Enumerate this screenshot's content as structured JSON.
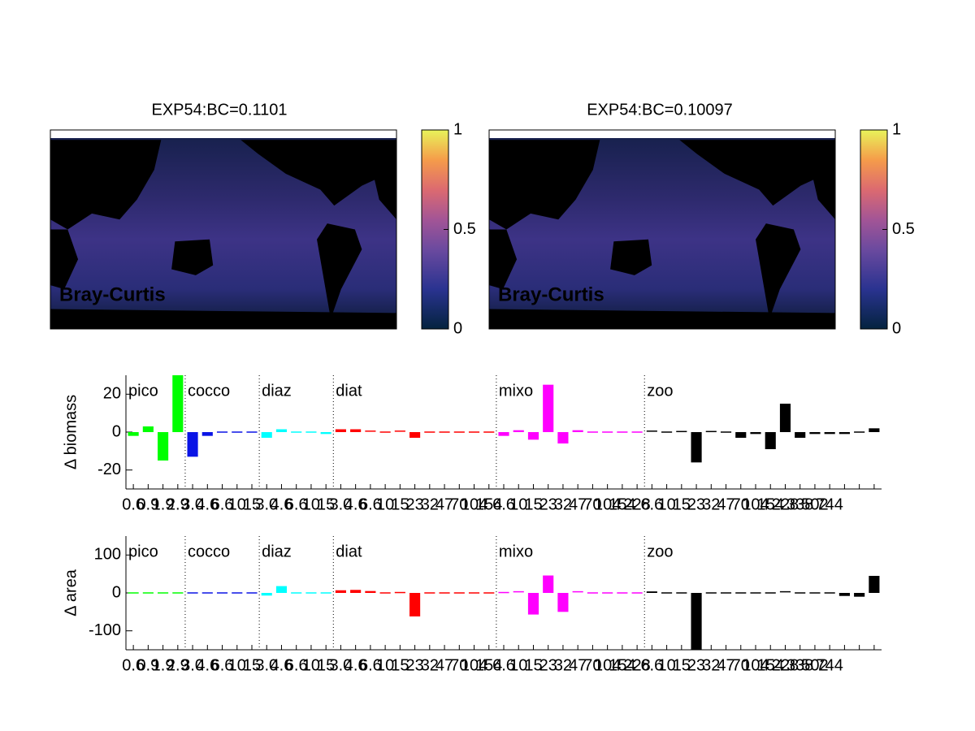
{
  "chart_data": [
    {
      "type": "map",
      "title": "EXP54:BC=0.1101",
      "label": "Bray-Curtis",
      "ylim": [
        0,
        1
      ],
      "yticks": [
        0,
        0.5,
        1
      ]
    },
    {
      "type": "map",
      "title": "EXP54:BC=0.10097",
      "label": "Bray-Curtis",
      "ylim": [
        0,
        1
      ],
      "yticks": [
        0,
        0.5,
        1
      ]
    },
    {
      "type": "bar",
      "ylabel": "Δ biomass",
      "ylim": [
        -30,
        30
      ],
      "yticks": [
        -20,
        0,
        20
      ],
      "series": [
        {
          "name": "pico",
          "color": "#00ff00",
          "categories": [
            "0.6",
            "0.9",
            "1.9",
            "2.9"
          ],
          "values": [
            -2,
            3,
            -15,
            30
          ]
        },
        {
          "name": "cocco",
          "color": "#0a14e6",
          "categories": [
            "3.0",
            "4.6",
            "6.6",
            "10",
            "15"
          ],
          "values": [
            -13,
            -2,
            -0.5,
            -0.5,
            0
          ]
        },
        {
          "name": "diaz",
          "color": "#00ffff",
          "categories": [
            "3.0",
            "4.6",
            "6.6",
            "10",
            "15"
          ],
          "values": [
            -3,
            1.5,
            0,
            0,
            -1
          ]
        },
        {
          "name": "diat",
          "color": "#ff0000",
          "categories": [
            "3.0",
            "4.6",
            "6.6",
            "10",
            "15",
            "23",
            "32",
            "47",
            "70",
            "104",
            "154"
          ],
          "values": [
            1.5,
            1.5,
            0.5,
            0,
            0.5,
            -3,
            0,
            0,
            0,
            0,
            0
          ]
        },
        {
          "name": "mixo",
          "color": "#ff00ff",
          "categories": [
            "6.6",
            "10",
            "15",
            "23",
            "32",
            "47",
            "70",
            "104",
            "154",
            "228"
          ],
          "values": [
            -2,
            1,
            -4,
            25,
            -6,
            1,
            0,
            0,
            0,
            0
          ]
        },
        {
          "name": "zoo",
          "color": "#000000",
          "categories": [
            "6.6",
            "10",
            "15",
            "23",
            "32",
            "47",
            "70",
            "104",
            "154",
            "228",
            "338",
            "502",
            "744",
            null,
            null,
            null
          ],
          "values": [
            0.5,
            -0.5,
            0.3,
            -16,
            0.3,
            -0.5,
            -3,
            -1,
            -9,
            15,
            -3,
            -1,
            -1,
            -1,
            -0.5,
            2
          ]
        }
      ]
    },
    {
      "type": "bar",
      "ylabel": "Δ area",
      "ylim": [
        -150,
        150
      ],
      "yticks": [
        -100,
        0,
        100
      ],
      "series": [
        {
          "name": "pico",
          "color": "#00ff00",
          "categories": [
            "0.6",
            "0.9",
            "1.9",
            "2.9"
          ],
          "values": [
            0,
            0,
            0,
            0
          ]
        },
        {
          "name": "cocco",
          "color": "#0a14e6",
          "categories": [
            "3.0",
            "4.6",
            "6.6",
            "10",
            "15"
          ],
          "values": [
            -1,
            -1,
            -1,
            0,
            -1
          ]
        },
        {
          "name": "diaz",
          "color": "#00ffff",
          "categories": [
            "3.0",
            "4.6",
            "6.6",
            "10",
            "15"
          ],
          "values": [
            -7,
            18,
            0,
            0,
            -1
          ]
        },
        {
          "name": "diat",
          "color": "#ff0000",
          "categories": [
            "3.0",
            "4.6",
            "6.6",
            "10",
            "15",
            "23",
            "32",
            "47",
            "70",
            "104",
            "154"
          ],
          "values": [
            7,
            8,
            5,
            0,
            1,
            -62,
            0,
            0,
            0,
            0,
            0
          ]
        },
        {
          "name": "mixo",
          "color": "#ff00ff",
          "categories": [
            "6.6",
            "10",
            "15",
            "23",
            "32",
            "47",
            "70",
            "104",
            "154",
            "228"
          ],
          "values": [
            1,
            3,
            -57,
            46,
            -50,
            3,
            -3,
            0,
            0,
            0
          ]
        },
        {
          "name": "zoo",
          "color": "#000000",
          "categories": [
            "6.6",
            "10",
            "15",
            "23",
            "32",
            "47",
            "70",
            "104",
            "154",
            "228",
            "338",
            "502",
            "744",
            null,
            null,
            null
          ],
          "values": [
            4,
            0,
            0,
            -150,
            0,
            0,
            0,
            -1,
            0,
            3,
            0,
            -1,
            -1,
            -8,
            -10,
            45
          ]
        }
      ]
    }
  ]
}
